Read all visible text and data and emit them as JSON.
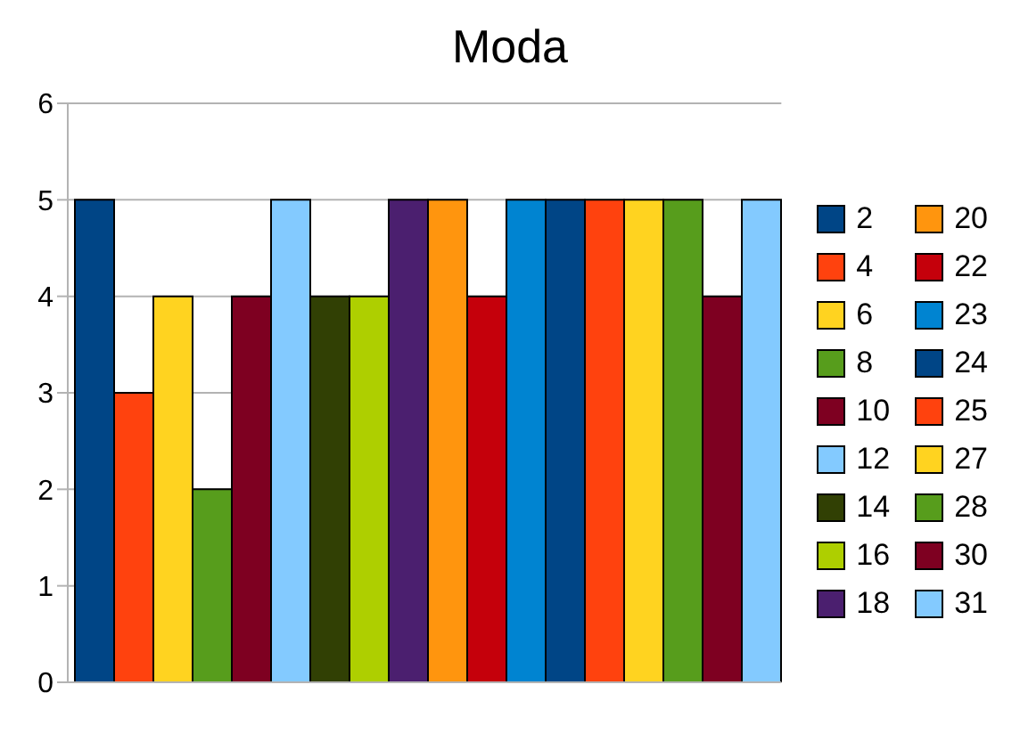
{
  "chart_data": {
    "type": "bar",
    "title": "Moda",
    "categories": [
      null
    ],
    "ylim": [
      0,
      6
    ],
    "yticks": [
      0,
      1,
      2,
      3,
      4,
      5,
      6
    ],
    "grid": "y",
    "legend": "right",
    "series": [
      {
        "name": "2",
        "color": "#004586",
        "values": [
          5
        ]
      },
      {
        "name": "4",
        "color": "#ff420e",
        "values": [
          3
        ]
      },
      {
        "name": "6",
        "color": "#ffd320",
        "values": [
          4
        ]
      },
      {
        "name": "8",
        "color": "#579d1c",
        "values": [
          2
        ]
      },
      {
        "name": "10",
        "color": "#7e0021",
        "values": [
          4
        ]
      },
      {
        "name": "12",
        "color": "#83caff",
        "values": [
          5
        ]
      },
      {
        "name": "14",
        "color": "#314004",
        "values": [
          4
        ]
      },
      {
        "name": "16",
        "color": "#aecf00",
        "values": [
          4
        ]
      },
      {
        "name": "18",
        "color": "#4b1f6f",
        "values": [
          5
        ]
      },
      {
        "name": "20",
        "color": "#ff950e",
        "values": [
          5
        ]
      },
      {
        "name": "22",
        "color": "#c5000b",
        "values": [
          4
        ]
      },
      {
        "name": "23",
        "color": "#0084d1",
        "values": [
          5
        ]
      },
      {
        "name": "24",
        "color": "#004586",
        "values": [
          5
        ]
      },
      {
        "name": "25",
        "color": "#ff420e",
        "values": [
          5
        ]
      },
      {
        "name": "27",
        "color": "#ffd320",
        "values": [
          5
        ]
      },
      {
        "name": "28",
        "color": "#579d1c",
        "values": [
          5
        ]
      },
      {
        "name": "30",
        "color": "#7e0021",
        "values": [
          4
        ]
      },
      {
        "name": "31",
        "color": "#83caff",
        "values": [
          5
        ]
      }
    ]
  }
}
